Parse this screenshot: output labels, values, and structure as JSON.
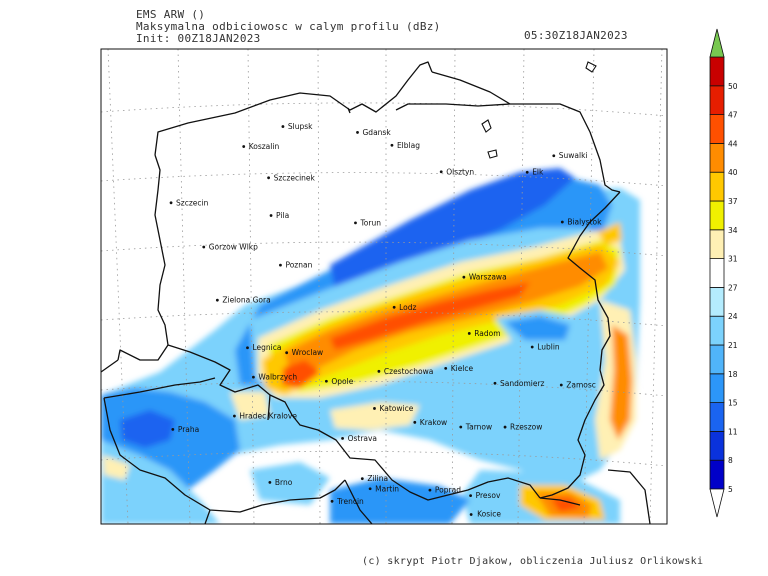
{
  "header": {
    "model": "EMS ARW ()",
    "field": "Maksymalna odbiciowosc w calym profilu (dBz)",
    "init": "Init: 00Z18JAN2023",
    "valid": "05:30Z18JAN2023"
  },
  "credit": "(c) skrypt Piotr Djakow, obliczenia Juliusz Orlikowski",
  "colorbar": {
    "levels": [
      "5",
      "8",
      "11",
      "15",
      "18",
      "21",
      "24",
      "27",
      "31",
      "34",
      "37",
      "40",
      "44",
      "47",
      "50"
    ],
    "colors": [
      "#0000c8",
      "#0a32dc",
      "#1a64f0",
      "#2c96f8",
      "#50b4fa",
      "#7cd2fc",
      "#b4ecfe",
      "#ffffff",
      "#fff0b4",
      "#f0f000",
      "#ffc800",
      "#ff8c00",
      "#ff5000",
      "#e61e00",
      "#c80000"
    ],
    "over_color": "#78c850"
  },
  "cities": [
    {
      "name": "Slupsk",
      "lon": 17.03,
      "lat": 54.46
    },
    {
      "name": "Gdansk",
      "lon": 18.65,
      "lat": 54.35
    },
    {
      "name": "Koszalin",
      "lon": 16.17,
      "lat": 54.19
    },
    {
      "name": "Elblag",
      "lon": 19.4,
      "lat": 54.16
    },
    {
      "name": "Suwalki",
      "lon": 22.93,
      "lat": 54.1
    },
    {
      "name": "Szczecinek",
      "lon": 16.7,
      "lat": 53.71
    },
    {
      "name": "Olsztyn",
      "lon": 20.48,
      "lat": 53.78
    },
    {
      "name": "Elk",
      "lon": 22.36,
      "lat": 53.83
    },
    {
      "name": "Szczecin",
      "lon": 14.55,
      "lat": 53.43
    },
    {
      "name": "Pila",
      "lon": 16.74,
      "lat": 53.15
    },
    {
      "name": "Bialystok",
      "lon": 23.16,
      "lat": 53.13
    },
    {
      "name": "Torun",
      "lon": 18.6,
      "lat": 53.01
    },
    {
      "name": "Gorzow Wlkp",
      "lon": 15.24,
      "lat": 52.74
    },
    {
      "name": "Poznan",
      "lon": 16.93,
      "lat": 52.41
    },
    {
      "name": "Warszawa",
      "lon": 21.01,
      "lat": 52.23
    },
    {
      "name": "Zielona Gora",
      "lon": 15.51,
      "lat": 51.94
    },
    {
      "name": "Lodz",
      "lon": 19.46,
      "lat": 51.76
    },
    {
      "name": "Radom",
      "lon": 21.15,
      "lat": 51.4
    },
    {
      "name": "Legnica",
      "lon": 16.16,
      "lat": 51.21
    },
    {
      "name": "Lublin",
      "lon": 22.57,
      "lat": 51.25
    },
    {
      "name": "Wroclaw",
      "lon": 17.04,
      "lat": 51.11
    },
    {
      "name": "Walbrzych",
      "lon": 16.28,
      "lat": 50.77
    },
    {
      "name": "Czestochowa",
      "lon": 19.12,
      "lat": 50.81
    },
    {
      "name": "Kielce",
      "lon": 20.63,
      "lat": 50.87
    },
    {
      "name": "Opole",
      "lon": 17.93,
      "lat": 50.67
    },
    {
      "name": "Zamosc",
      "lon": 23.25,
      "lat": 50.72
    },
    {
      "name": "Sandomierz",
      "lon": 21.75,
      "lat": 50.68
    },
    {
      "name": "Hradec Kralove",
      "lon": 15.83,
      "lat": 50.21
    },
    {
      "name": "Katowice",
      "lon": 19.02,
      "lat": 50.26
    },
    {
      "name": "Praha",
      "lon": 14.42,
      "lat": 50.08
    },
    {
      "name": "Krakow",
      "lon": 19.94,
      "lat": 50.06
    },
    {
      "name": "Tarnow",
      "lon": 20.99,
      "lat": 50.01
    },
    {
      "name": "Rzeszow",
      "lon": 22.0,
      "lat": 50.04
    },
    {
      "name": "Ostrava",
      "lon": 18.29,
      "lat": 49.82
    },
    {
      "name": "Brno",
      "lon": 16.61,
      "lat": 49.2
    },
    {
      "name": "Zilina",
      "lon": 18.74,
      "lat": 49.22
    },
    {
      "name": "Martin",
      "lon": 18.92,
      "lat": 49.07
    },
    {
      "name": "Poprad",
      "lon": 20.3,
      "lat": 49.06
    },
    {
      "name": "Presov",
      "lon": 21.24,
      "lat": 49.0
    },
    {
      "name": "Trencin",
      "lon": 18.04,
      "lat": 48.89
    },
    {
      "name": "Kosice",
      "lon": 21.26,
      "lat": 48.72
    }
  ]
}
